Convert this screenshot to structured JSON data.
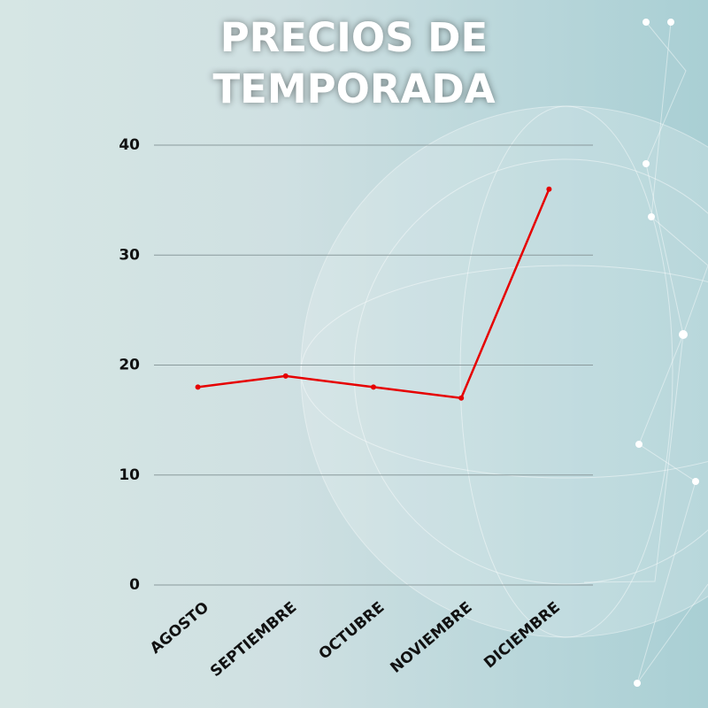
{
  "chart_data": {
    "type": "line",
    "title": "PRECIOS DE TEMPORADA",
    "categories": [
      "AGOSTO",
      "SEPTIEMBRE",
      "OCTUBRE",
      "NOVIEMBRE",
      "DICIEMBRE"
    ],
    "values": [
      18,
      19,
      18,
      17,
      36
    ],
    "color": "#e60000",
    "ylim": [
      0,
      40
    ],
    "yticks": [
      0,
      10,
      20,
      30,
      40
    ],
    "grid": true
  }
}
